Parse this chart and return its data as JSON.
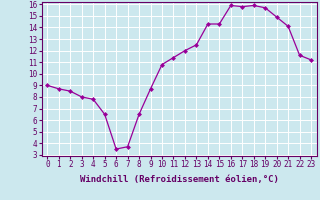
{
  "x": [
    0,
    1,
    2,
    3,
    4,
    5,
    6,
    7,
    8,
    9,
    10,
    11,
    12,
    13,
    14,
    15,
    16,
    17,
    18,
    19,
    20,
    21,
    22,
    23
  ],
  "y": [
    9.0,
    8.7,
    8.5,
    8.0,
    7.8,
    6.5,
    3.5,
    3.7,
    6.5,
    8.7,
    10.8,
    11.4,
    12.0,
    12.5,
    14.3,
    14.3,
    15.9,
    15.8,
    15.9,
    15.7,
    14.9,
    14.1,
    11.6,
    11.2
  ],
  "line_color": "#990099",
  "marker": "D",
  "marker_size": 2.0,
  "bg_color": "#cce8ee",
  "grid_color": "#ffffff",
  "xlabel": "Windchill (Refroidissement éolien,°C)",
  "xlabel_color": "#660066",
  "tick_color": "#660066",
  "axis_color": "#660066",
  "ylim": [
    3,
    16
  ],
  "xlim": [
    -0.5,
    23.5
  ],
  "yticks": [
    3,
    4,
    5,
    6,
    7,
    8,
    9,
    10,
    11,
    12,
    13,
    14,
    15,
    16
  ],
  "xticks": [
    0,
    1,
    2,
    3,
    4,
    5,
    6,
    7,
    8,
    9,
    10,
    11,
    12,
    13,
    14,
    15,
    16,
    17,
    18,
    19,
    20,
    21,
    22,
    23
  ],
  "tick_fontsize": 5.5,
  "xlabel_fontsize": 6.5
}
